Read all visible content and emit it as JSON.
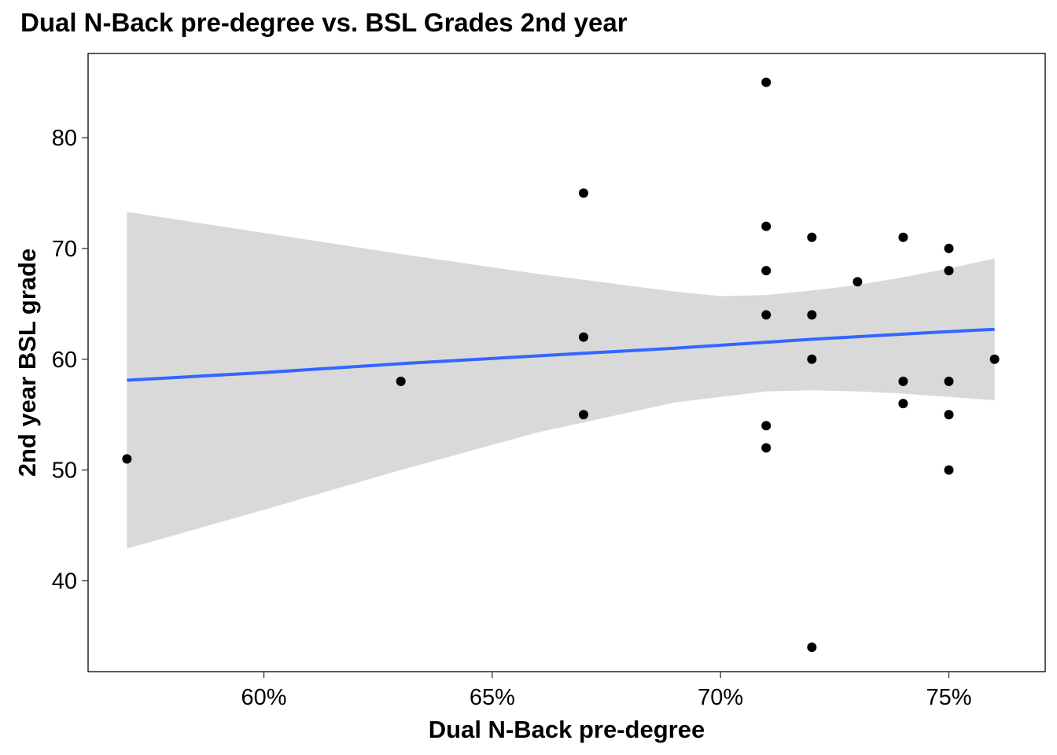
{
  "chart_data": {
    "type": "scatter",
    "title": "Dual N-Back pre-degree vs. BSL Grades 2nd year",
    "xlabel": "Dual N-Back pre-degree",
    "ylabel": "2nd year BSL grade",
    "xlim": [
      0.5615,
      0.7711
    ],
    "ylim": [
      31.8,
      87.6
    ],
    "x_ticks": [
      0.6,
      0.65,
      0.7,
      0.75
    ],
    "x_tick_labels": [
      "60%",
      "65%",
      "70%",
      "75%"
    ],
    "y_ticks": [
      40,
      50,
      60,
      70,
      80
    ],
    "y_tick_labels": [
      "40",
      "50",
      "60",
      "70",
      "80"
    ],
    "grid": false,
    "points": [
      {
        "x": 0.57,
        "y": 51
      },
      {
        "x": 0.63,
        "y": 58
      },
      {
        "x": 0.67,
        "y": 75
      },
      {
        "x": 0.67,
        "y": 62
      },
      {
        "x": 0.67,
        "y": 55
      },
      {
        "x": 0.71,
        "y": 85
      },
      {
        "x": 0.71,
        "y": 72
      },
      {
        "x": 0.71,
        "y": 68
      },
      {
        "x": 0.71,
        "y": 64
      },
      {
        "x": 0.71,
        "y": 54
      },
      {
        "x": 0.71,
        "y": 52
      },
      {
        "x": 0.72,
        "y": 71
      },
      {
        "x": 0.72,
        "y": 64
      },
      {
        "x": 0.72,
        "y": 60
      },
      {
        "x": 0.72,
        "y": 34
      },
      {
        "x": 0.73,
        "y": 67
      },
      {
        "x": 0.74,
        "y": 71
      },
      {
        "x": 0.74,
        "y": 58
      },
      {
        "x": 0.74,
        "y": 56
      },
      {
        "x": 0.75,
        "y": 70
      },
      {
        "x": 0.75,
        "y": 68
      },
      {
        "x": 0.75,
        "y": 58
      },
      {
        "x": 0.75,
        "y": 55
      },
      {
        "x": 0.75,
        "y": 50
      },
      {
        "x": 0.76,
        "y": 60
      }
    ],
    "fit_line": {
      "method": "linear",
      "color": "#3366FF",
      "x": [
        0.57,
        0.6,
        0.63,
        0.66,
        0.69,
        0.72,
        0.75,
        0.76
      ],
      "y": [
        58.1,
        58.8,
        59.6,
        60.3,
        61.0,
        61.8,
        62.5,
        62.7
      ]
    },
    "confidence_band": {
      "color": "#D9D9D9",
      "x": [
        0.57,
        0.6,
        0.63,
        0.66,
        0.69,
        0.7,
        0.71,
        0.72,
        0.73,
        0.74,
        0.75,
        0.76
      ],
      "upper": [
        73.3,
        71.4,
        69.5,
        67.7,
        66.1,
        65.7,
        65.8,
        66.2,
        66.7,
        67.4,
        68.2,
        69.1
      ],
      "lower": [
        42.9,
        46.4,
        50.0,
        53.4,
        56.1,
        56.6,
        57.1,
        57.2,
        57.1,
        56.9,
        56.6,
        56.3
      ]
    },
    "point_color": "#000000"
  }
}
